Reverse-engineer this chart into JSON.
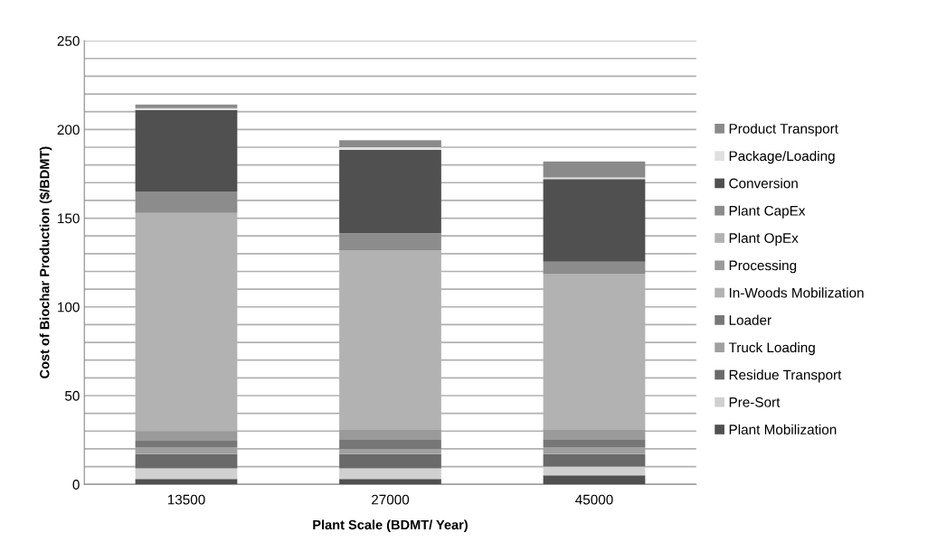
{
  "chart_data": {
    "type": "bar",
    "stacked": true,
    "xlabel": "Plant Scale (BDMT/ Year)",
    "ylabel": "Cost of Biochar Production ($/BDMT)",
    "categories": [
      "13500",
      "27000",
      "45000"
    ],
    "series": [
      {
        "name": "Plant Mobilization",
        "color": "#505050",
        "values": [
          3,
          3,
          5
        ]
      },
      {
        "name": "Pre-Sort",
        "color": "#d0d0d0",
        "values": [
          6,
          6,
          5
        ]
      },
      {
        "name": "Residue Transport",
        "color": "#6a6a6a",
        "values": [
          8,
          8,
          7
        ]
      },
      {
        "name": "Truck Loading",
        "color": "#a0a0a0",
        "values": [
          4,
          3,
          4
        ]
      },
      {
        "name": "Loader",
        "color": "#777777",
        "values": [
          3.5,
          5,
          4
        ]
      },
      {
        "name": "In-Woods Mobilization",
        "color": "#b2b2b2",
        "values": [
          0,
          0,
          0
        ]
      },
      {
        "name": "Processing",
        "color": "#9a9a9a",
        "values": [
          5.5,
          6,
          6
        ]
      },
      {
        "name": "Plant OpEx",
        "color": "#b2b2b2",
        "values": [
          123,
          101,
          87.5
        ]
      },
      {
        "name": "Plant CapEx",
        "color": "#8c8c8c",
        "values": [
          12,
          9.5,
          7
        ]
      },
      {
        "name": "Conversion",
        "color": "#505050",
        "values": [
          46,
          47,
          46.5
        ]
      },
      {
        "name": "Package/Loading",
        "color": "#e0e0e0",
        "values": [
          1,
          1.5,
          1
        ]
      },
      {
        "name": "Product Transport",
        "color": "#8a8a8a",
        "values": [
          2,
          4,
          9
        ]
      }
    ],
    "ylim": [
      0,
      250
    ],
    "yticks": [
      0,
      {
        "value": 10,
        "label": null
      },
      {
        "value": 20,
        "label": null
      },
      {
        "value": 30,
        "label": null
      },
      {
        "value": 40,
        "label": null
      },
      50,
      {
        "value": 60,
        "label": null
      },
      {
        "value": 70,
        "label": null
      },
      {
        "value": 80,
        "label": null
      },
      {
        "value": 90,
        "label": null
      },
      100,
      {
        "value": 110,
        "label": null
      },
      {
        "value": 120,
        "label": null
      },
      {
        "value": 130,
        "label": null
      },
      {
        "value": 140,
        "label": null
      },
      150,
      {
        "value": 160,
        "label": null
      },
      {
        "value": 170,
        "label": null
      },
      {
        "value": 180,
        "label": null
      },
      {
        "value": 190,
        "label": null
      },
      200,
      {
        "value": 210,
        "label": null
      },
      {
        "value": 220,
        "label": null
      },
      {
        "value": 230,
        "label": null
      },
      {
        "value": 240,
        "label": null
      },
      250
    ],
    "grid": "y",
    "legend": "right"
  }
}
